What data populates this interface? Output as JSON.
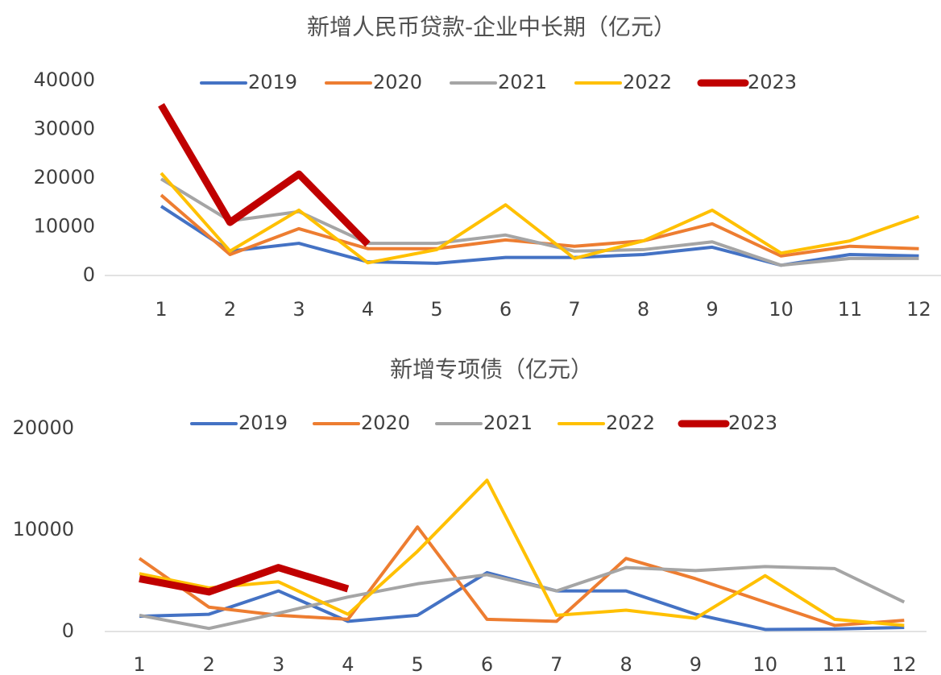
{
  "chart_data": [
    {
      "type": "line",
      "title": "新增人民币贷款-企业中长期（亿元）",
      "categories": [
        "1",
        "2",
        "3",
        "4",
        "5",
        "6",
        "7",
        "8",
        "9",
        "10",
        "11",
        "12"
      ],
      "ylim": [
        0,
        40000
      ],
      "yticks": [
        0,
        10000,
        20000,
        30000,
        40000
      ],
      "legend": "top",
      "series": [
        {
          "name": "2019",
          "color": "#4472c4",
          "values": [
            14200,
            5000,
            6600,
            2800,
            2500,
            3700,
            3700,
            4300,
            5800,
            2100,
            4300,
            4000
          ]
        },
        {
          "name": "2020",
          "color": "#ed7d31",
          "values": [
            16500,
            4300,
            9600,
            5500,
            5500,
            7300,
            6000,
            7100,
            10600,
            4000,
            6000,
            5500
          ]
        },
        {
          "name": "2021",
          "color": "#a5a5a5",
          "values": [
            19800,
            11200,
            13100,
            6600,
            6600,
            8300,
            5000,
            5300,
            6900,
            2100,
            3500,
            3500
          ]
        },
        {
          "name": "2022",
          "color": "#ffc000",
          "values": [
            21000,
            5000,
            13400,
            2600,
            5300,
            14500,
            3500,
            7100,
            13400,
            4600,
            7100,
            12100
          ]
        },
        {
          "name": "2023",
          "color": "#c00000",
          "values": [
            35000,
            10900,
            20800,
            6400,
            null,
            null,
            null,
            null,
            null,
            null,
            null,
            null
          ]
        }
      ]
    },
    {
      "type": "line",
      "title": "新增专项债（亿元）",
      "categories": [
        "1",
        "2",
        "3",
        "4",
        "5",
        "6",
        "7",
        "8",
        "9",
        "10",
        "11",
        "12"
      ],
      "ylim": [
        0,
        20000
      ],
      "yticks": [
        0,
        10000,
        20000
      ],
      "legend": "top",
      "series": [
        {
          "name": "2019",
          "color": "#4472c4",
          "values": [
            1500,
            1700,
            4000,
            1000,
            1600,
            5800,
            4000,
            4000,
            1700,
            200,
            250,
            400
          ]
        },
        {
          "name": "2020",
          "color": "#ed7d31",
          "values": [
            7200,
            2400,
            1600,
            1200,
            10300,
            1200,
            1000,
            7200,
            5200,
            2900,
            600,
            1100
          ]
        },
        {
          "name": "2021",
          "color": "#a5a5a5",
          "values": [
            1600,
            300,
            1800,
            3400,
            4700,
            5600,
            4000,
            6300,
            6000,
            6400,
            6200,
            2900
          ]
        },
        {
          "name": "2022",
          "color": "#ffc000",
          "values": [
            5700,
            4300,
            4900,
            1700,
            7900,
            14900,
            1600,
            2100,
            1300,
            5500,
            1200,
            600
          ]
        },
        {
          "name": "2023",
          "color": "#c00000",
          "values": [
            5200,
            3900,
            6300,
            4200,
            null,
            null,
            null,
            null,
            null,
            null,
            null,
            null
          ]
        }
      ]
    }
  ]
}
